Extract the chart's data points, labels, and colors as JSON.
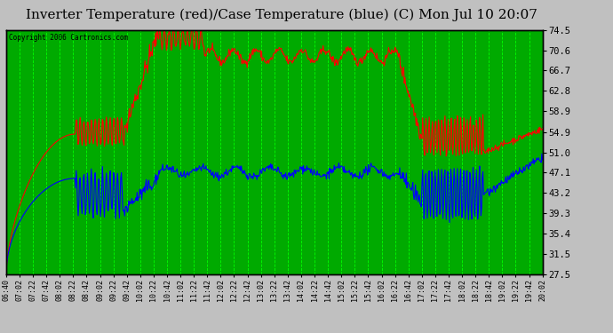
{
  "title": "Inverter Temperature (red)/Case Temperature (blue) (C) Mon Jul 10 20:07",
  "copyright": "Copyright 2006 Cartronics.com",
  "yticks": [
    27.5,
    31.5,
    35.4,
    39.3,
    43.2,
    47.1,
    51.0,
    54.9,
    58.9,
    62.8,
    66.7,
    70.6,
    74.5
  ],
  "ymin": 27.5,
  "ymax": 74.5,
  "bg_color": "#00aa00",
  "fig_bg_color": "#c0c0c0",
  "grid_color": "#00ff00",
  "red_color": "#ff0000",
  "blue_color": "#0000ff",
  "title_fontsize": 11,
  "xtick_labels": [
    "06:40",
    "07:02",
    "07:22",
    "07:42",
    "08:02",
    "08:22",
    "08:42",
    "09:02",
    "09:22",
    "09:42",
    "10:02",
    "10:22",
    "10:42",
    "11:02",
    "11:22",
    "11:42",
    "12:02",
    "12:22",
    "12:42",
    "13:02",
    "13:22",
    "13:42",
    "14:02",
    "14:22",
    "14:42",
    "15:02",
    "15:22",
    "15:42",
    "16:02",
    "16:22",
    "16:42",
    "17:02",
    "17:22",
    "17:42",
    "18:02",
    "18:22",
    "18:42",
    "19:02",
    "19:22",
    "19:42",
    "20:02"
  ]
}
